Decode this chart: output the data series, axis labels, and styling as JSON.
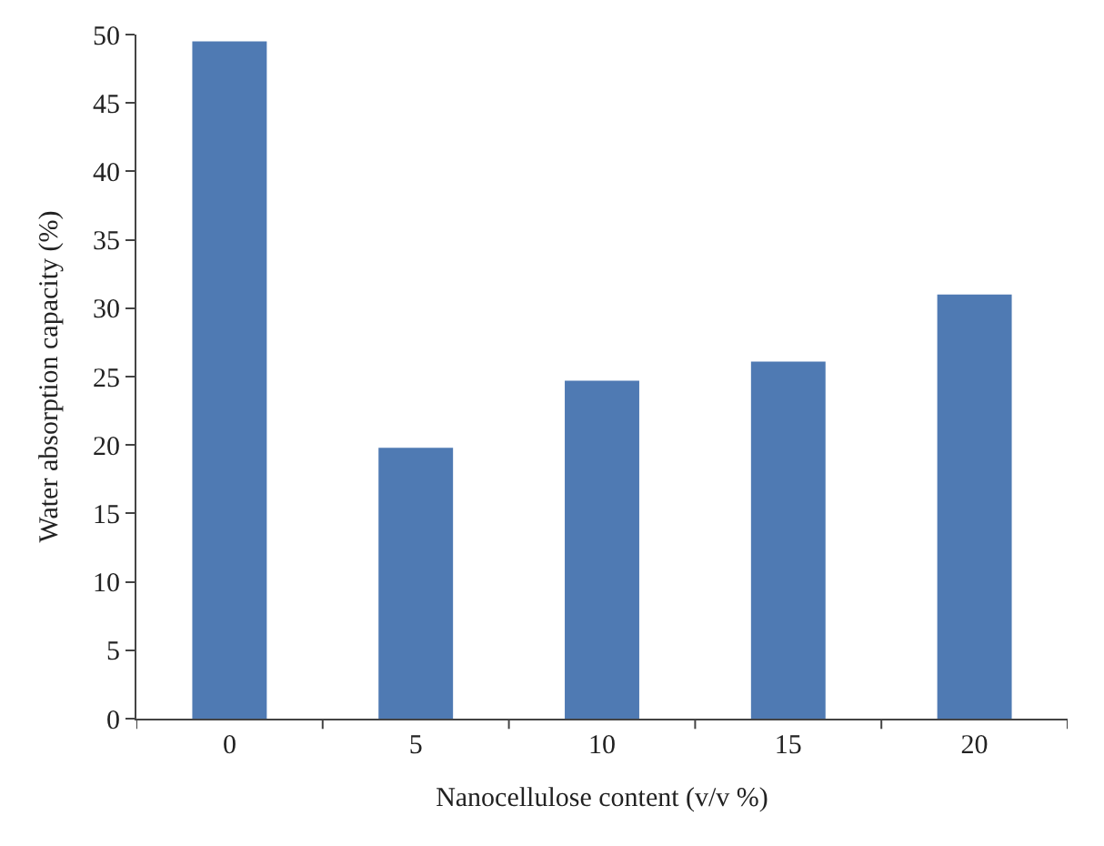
{
  "chart_data": {
    "type": "bar",
    "xlabel": "Nanocellulose content (v/v %)",
    "ylabel": "Water absorption capacity (%)",
    "categories": [
      "0",
      "5",
      "10",
      "15",
      "20"
    ],
    "values": [
      49.5,
      19.8,
      24.7,
      26.1,
      31.0
    ],
    "color": "#4f7ab3",
    "ylim": [
      0,
      50
    ],
    "yticks": [
      0,
      5,
      10,
      15,
      20,
      25,
      30,
      35,
      40,
      45,
      50
    ]
  }
}
